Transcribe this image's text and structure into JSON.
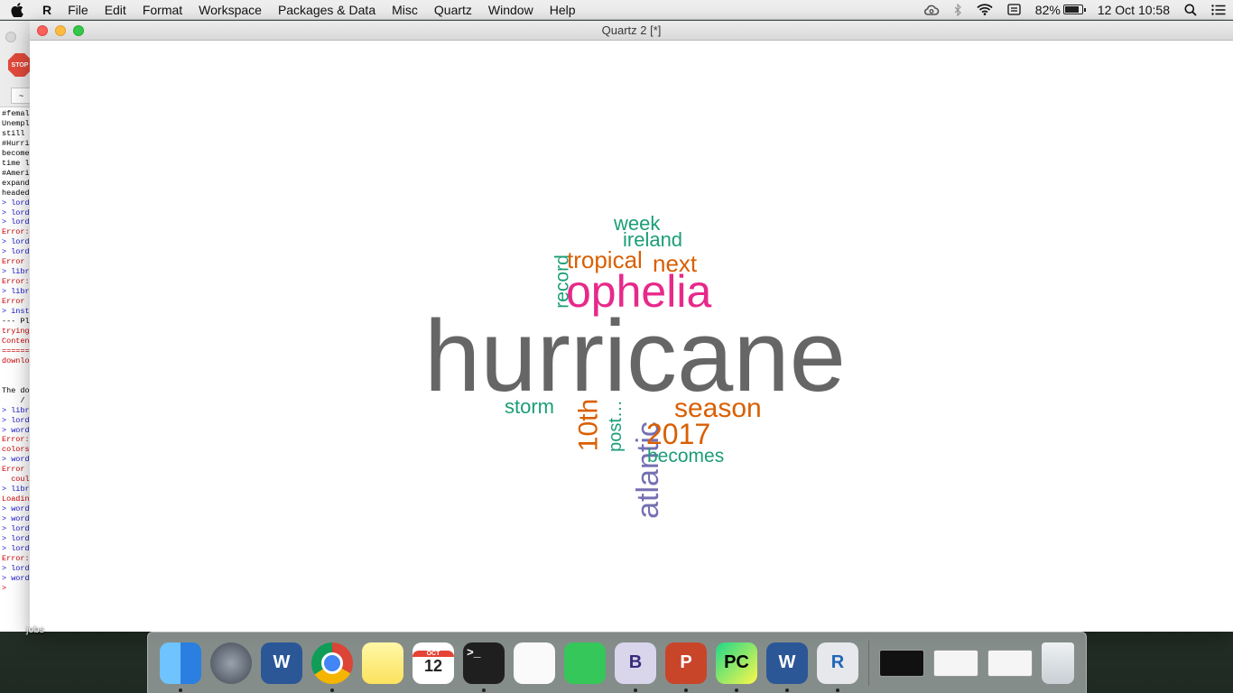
{
  "menubar": {
    "apple_icon": "apple-logo-icon",
    "app_name": "R",
    "items": [
      "File",
      "Edit",
      "Format",
      "Workspace",
      "Packages & Data",
      "Misc",
      "Quartz",
      "Window",
      "Help"
    ],
    "status": {
      "battery": "82%",
      "battery_level": 0.82,
      "date": "12 Oct",
      "time": "10:58"
    }
  },
  "console": {
    "stop_label": "STOP",
    "path": "~",
    "lines": [
      {
        "text": "#femal",
        "type": "plain"
      },
      {
        "text": "Unempl",
        "type": "plain"
      },
      {
        "text": "still",
        "type": "plain"
      },
      {
        "text": "#Hurri",
        "type": "plain"
      },
      {
        "text": "become",
        "type": "plain"
      },
      {
        "text": "time l",
        "type": "plain"
      },
      {
        "text": "#Ameri",
        "type": "plain"
      },
      {
        "text": "expand",
        "type": "plain"
      },
      {
        "text": "headed",
        "type": "plain"
      },
      {
        "text": "> lord",
        "type": "prompt"
      },
      {
        "text": "> lord",
        "type": "prompt"
      },
      {
        "text": "> lord",
        "type": "prompt"
      },
      {
        "text": "Error:",
        "type": "error"
      },
      {
        "text": "> lord",
        "type": "prompt"
      },
      {
        "text": "> lord",
        "type": "prompt"
      },
      {
        "text": "Error",
        "type": "error"
      },
      {
        "text": "> libr",
        "type": "prompt"
      },
      {
        "text": "Error:",
        "type": "error"
      },
      {
        "text": "> libr",
        "type": "prompt"
      },
      {
        "text": "Error",
        "type": "error"
      },
      {
        "text": "> inst",
        "type": "prompt"
      },
      {
        "text": "--- Pl",
        "type": "plain"
      },
      {
        "text": "trying",
        "type": "error"
      },
      {
        "text": "Conten",
        "type": "error"
      },
      {
        "text": "======",
        "type": "error"
      },
      {
        "text": "downlo",
        "type": "error"
      },
      {
        "text": "",
        "type": "plain"
      },
      {
        "text": "",
        "type": "plain"
      },
      {
        "text": "The do",
        "type": "plain"
      },
      {
        "text": "    /",
        "type": "plain"
      },
      {
        "text": "> libr",
        "type": "prompt"
      },
      {
        "text": "> lord",
        "type": "prompt"
      },
      {
        "text": "> word",
        "type": "prompt"
      },
      {
        "text": "Error:",
        "type": "error"
      },
      {
        "text": "colors",
        "type": "error"
      },
      {
        "text": "> word",
        "type": "prompt"
      },
      {
        "text": "Error",
        "type": "error"
      },
      {
        "text": "  coul",
        "type": "error"
      },
      {
        "text": "> libr",
        "type": "prompt"
      },
      {
        "text": "Loadin",
        "type": "error"
      },
      {
        "text": "> word",
        "type": "prompt"
      },
      {
        "text": "> word",
        "type": "prompt"
      },
      {
        "text": "> lord",
        "type": "prompt"
      },
      {
        "text": "> lord",
        "type": "prompt"
      },
      {
        "text": "> lord",
        "type": "prompt"
      },
      {
        "text": "Error:",
        "type": "error"
      },
      {
        "text": "> lord",
        "type": "prompt"
      },
      {
        "text": "> word",
        "type": "prompt"
      },
      {
        "text": ">",
        "type": "error"
      }
    ]
  },
  "quartz_window": {
    "title": "Quartz 2 [*]"
  },
  "chart_data": {
    "type": "wordcloud",
    "words": [
      {
        "text": "hurricane",
        "color": "#666666",
        "rotate": 0
      },
      {
        "text": "ophelia",
        "color": "#e7298a",
        "rotate": 0
      },
      {
        "text": "atlantic",
        "color": "#7570b3",
        "rotate": -90
      },
      {
        "text": "10th",
        "color": "#d95f02",
        "rotate": -90
      },
      {
        "text": "2017",
        "color": "#d95f02",
        "rotate": 0
      },
      {
        "text": "season",
        "color": "#d95f02",
        "rotate": 0
      },
      {
        "text": "tropical",
        "color": "#d95f02",
        "rotate": 0
      },
      {
        "text": "next",
        "color": "#d95f02",
        "rotate": 0
      },
      {
        "text": "post…",
        "color": "#1b9e77",
        "rotate": -90
      },
      {
        "text": "record",
        "color": "#1b9e77",
        "rotate": -90
      },
      {
        "text": "storm",
        "color": "#1b9e77",
        "rotate": 0
      },
      {
        "text": "becomes",
        "color": "#1b9e77",
        "rotate": 0
      },
      {
        "text": "ireland",
        "color": "#1b9e77",
        "rotate": 0
      },
      {
        "text": "week",
        "color": "#1b9e77",
        "rotate": 0
      }
    ]
  },
  "desktop": {
    "folder_label": "jobs"
  },
  "dock": {
    "apps": [
      {
        "name": "finder-icon",
        "glyph": "",
        "cls": "ic-finder",
        "running": true
      },
      {
        "name": "launchpad-icon",
        "glyph": "",
        "cls": "ic-launch",
        "running": false
      },
      {
        "name": "microsoft-word-icon",
        "glyph": "W",
        "cls": "ic-word",
        "running": false
      },
      {
        "name": "chrome-icon",
        "glyph": "",
        "cls": "ic-chrome",
        "running": true
      },
      {
        "name": "notes-icon",
        "glyph": "",
        "cls": "ic-notes",
        "running": false
      },
      {
        "name": "calendar-icon",
        "glyph": "12",
        "cls": "ic-cal",
        "running": false
      },
      {
        "name": "terminal-icon",
        "glyph": ">_",
        "cls": "ic-term",
        "running": true
      },
      {
        "name": "reminders-icon",
        "glyph": "",
        "cls": "ic-remind",
        "running": false
      },
      {
        "name": "facetime-icon",
        "glyph": "",
        "cls": "ic-facetime",
        "running": false
      },
      {
        "name": "bbedit-icon",
        "glyph": "B",
        "cls": "ic-bbedit",
        "running": true
      },
      {
        "name": "powerpoint-icon",
        "glyph": "P",
        "cls": "ic-ppt",
        "running": true
      },
      {
        "name": "pycharm-icon",
        "glyph": "PC",
        "cls": "ic-pycharm",
        "running": true
      },
      {
        "name": "word-document-icon",
        "glyph": "W",
        "cls": "ic-word",
        "running": true
      },
      {
        "name": "r-app-icon",
        "glyph": "R",
        "cls": "ic-r",
        "running": true
      }
    ],
    "calendar_month": "OCT",
    "minimized": [
      {
        "name": "minimized-terminal-window-icon",
        "cls": "ic-win term"
      },
      {
        "name": "minimized-document-window-icon",
        "cls": "ic-win"
      },
      {
        "name": "minimized-r-console-window-icon",
        "cls": "ic-win"
      }
    ],
    "trash": "trash-icon"
  }
}
